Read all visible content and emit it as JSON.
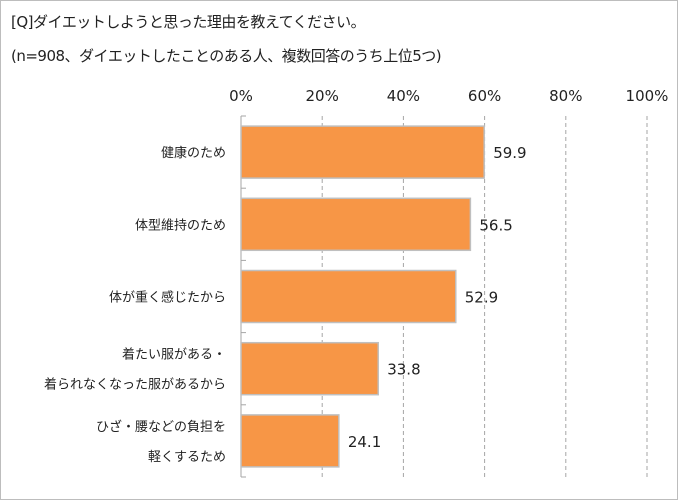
{
  "chart_data": {
    "type": "bar",
    "orientation": "horizontal",
    "title": "[Q]ダイエットしようと思った理由を教えてください。",
    "subtitle": "(n=908、ダイエットしたことのある人、複数回答のうち上位5つ)",
    "categories": [
      [
        "健康のため"
      ],
      [
        "体型維持のため"
      ],
      [
        "体が重く感じたから"
      ],
      [
        "着たい服がある・",
        "着られなくなった服があるから"
      ],
      [
        "ひざ・腰などの負担を",
        "軽くするため"
      ]
    ],
    "values": [
      59.9,
      56.5,
      52.9,
      33.8,
      24.1
    ],
    "value_labels": [
      "59.9",
      "56.5",
      "52.9",
      "33.8",
      "24.1"
    ],
    "xlim": [
      0,
      100
    ],
    "ticks": [
      0,
      20,
      40,
      60,
      80,
      100
    ],
    "tick_labels": [
      "0%",
      "20%",
      "40%",
      "60%",
      "80%",
      "100%"
    ],
    "xaxis_position": "top",
    "grid": "vertical dashed",
    "bar_color": "#f79646",
    "bar_border": "#bfbfbf"
  }
}
